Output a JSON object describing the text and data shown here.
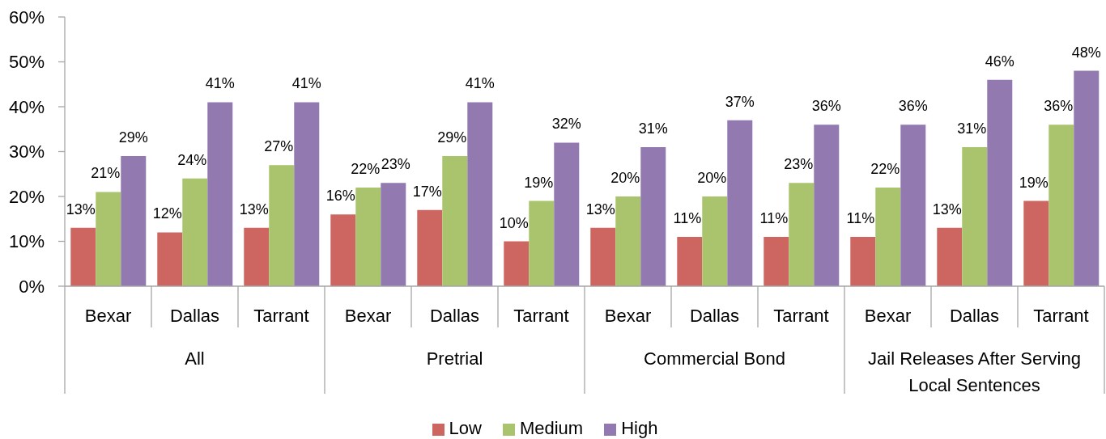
{
  "chart_data": {
    "type": "bar",
    "categories": [
      "Bexar",
      "Dallas",
      "Tarrant",
      "Bexar",
      "Dallas",
      "Tarrant",
      "Bexar",
      "Dallas",
      "Tarrant",
      "Bexar",
      "Dallas",
      "Tarrant"
    ],
    "annotations": [
      "All",
      "Pretrial",
      "Commercial Bond",
      "Jail Releases After Serving Local Sentences"
    ],
    "series": [
      {
        "name": "Low",
        "color": "#cd6661",
        "values": [
          13,
          12,
          13,
          16,
          17,
          10,
          13,
          11,
          11,
          11,
          13,
          19
        ],
        "value_labels": [
          "13%",
          "12%",
          "13%",
          "16%",
          "17%",
          "10%",
          "13%",
          "11%",
          "11%",
          "11%",
          "13%",
          "19%"
        ]
      },
      {
        "name": "Medium",
        "color": "#a9c46c",
        "values": [
          21,
          24,
          27,
          22,
          29,
          19,
          20,
          20,
          23,
          22,
          31,
          36
        ],
        "value_labels": [
          "21%",
          "24%",
          "27%",
          "22%",
          "29%",
          "19%",
          "20%",
          "20%",
          "23%",
          "22%",
          "31%",
          "36%"
        ]
      },
      {
        "name": "High",
        "color": "#927ab1",
        "values": [
          29,
          41,
          41,
          23,
          41,
          32,
          31,
          37,
          36,
          36,
          46,
          48
        ],
        "value_labels": [
          "29%",
          "41%",
          "41%",
          "23%",
          "41%",
          "32%",
          "31%",
          "37%",
          "36%",
          "36%",
          "46%",
          "48%"
        ]
      }
    ],
    "ylim": [
      0,
      60
    ],
    "yticks": [
      {
        "value": 0,
        "label": "0%"
      },
      {
        "value": 10,
        "label": "10%"
      },
      {
        "value": 20,
        "label": "20%"
      },
      {
        "value": 30,
        "label": "30%"
      },
      {
        "value": 40,
        "label": "40%"
      },
      {
        "value": 50,
        "label": "50%"
      },
      {
        "value": 60,
        "label": "60%"
      }
    ],
    "legend": "bottom"
  }
}
